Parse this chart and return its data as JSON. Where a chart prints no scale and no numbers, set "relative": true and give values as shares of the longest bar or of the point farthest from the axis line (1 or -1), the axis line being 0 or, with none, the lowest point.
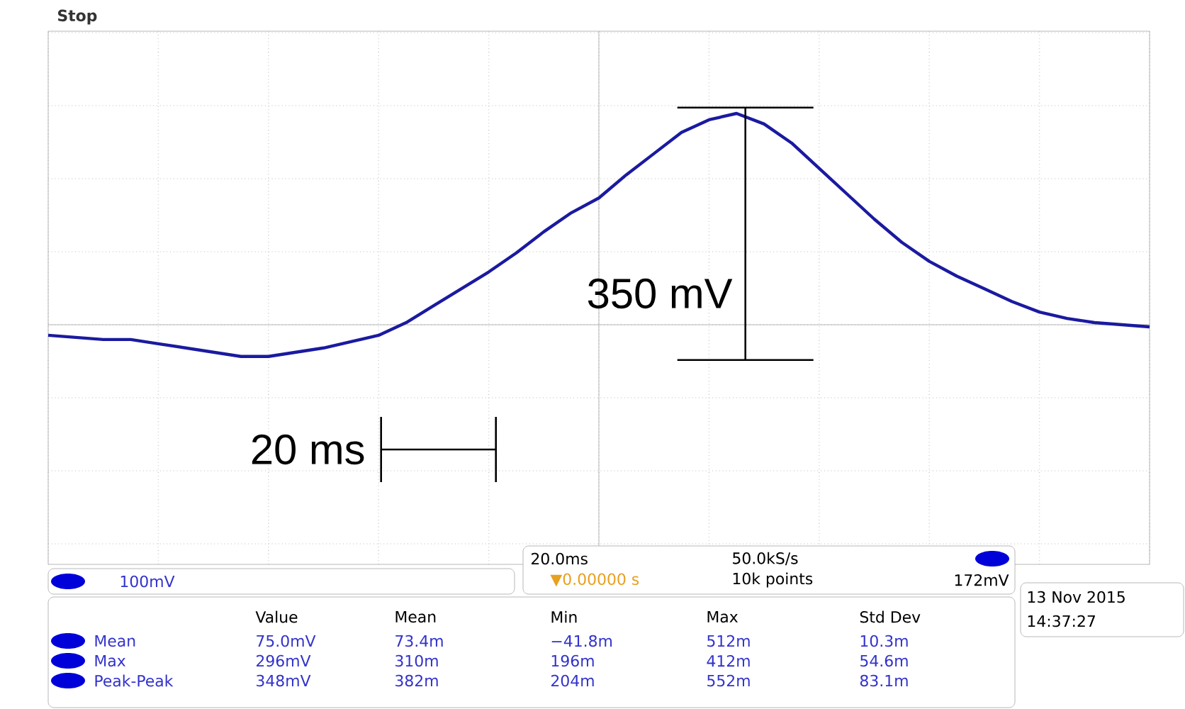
{
  "chart_data": {
    "type": "line",
    "relative": true,
    "grid": true,
    "marker": "none",
    "tick_labels": false,
    "categories": [
      null,
      null,
      null,
      null,
      null,
      null,
      null,
      null,
      null,
      null,
      null,
      null,
      null,
      null,
      null,
      null,
      null,
      null,
      null,
      null,
      null,
      null,
      null,
      null,
      null,
      null,
      null,
      null,
      null,
      null,
      null,
      null,
      null,
      null,
      null,
      null,
      null,
      null,
      null,
      null,
      null
    ],
    "series": [
      {
        "color": "#1a1aa0",
        "values": [
          -0.05,
          -0.06,
          -0.07,
          -0.07,
          -0.09,
          -0.11,
          -0.13,
          -0.15,
          -0.15,
          -0.13,
          -0.11,
          -0.08,
          -0.05,
          0.01,
          0.09,
          0.17,
          0.25,
          0.34,
          0.44,
          0.53,
          0.6,
          0.71,
          0.81,
          0.91,
          0.97,
          1.0,
          0.95,
          0.86,
          0.74,
          0.62,
          0.5,
          0.39,
          0.3,
          0.23,
          0.17,
          0.11,
          0.06,
          0.03,
          0.01,
          0.0,
          -0.01
        ]
      }
    ],
    "annotations": [
      "350 mV",
      "20 ms",
      "Stop",
      "100mV",
      "20.0ms",
      "50.0kS/s",
      "▼0.00000 s",
      "10k points",
      "172mV",
      "Value",
      "Mean",
      "Min",
      "Max",
      "Std Dev",
      "Mean",
      "75.0mV",
      "73.4m",
      "−41.8m",
      "512m",
      "10.3m",
      "Max",
      "296mV",
      "310m",
      "196m",
      "412m",
      "54.6m",
      "Peak-Peak",
      "348mV",
      "382m",
      "204m",
      "552m",
      "83.1m",
      "13 Nov 2015",
      "14:37:27"
    ]
  }
}
